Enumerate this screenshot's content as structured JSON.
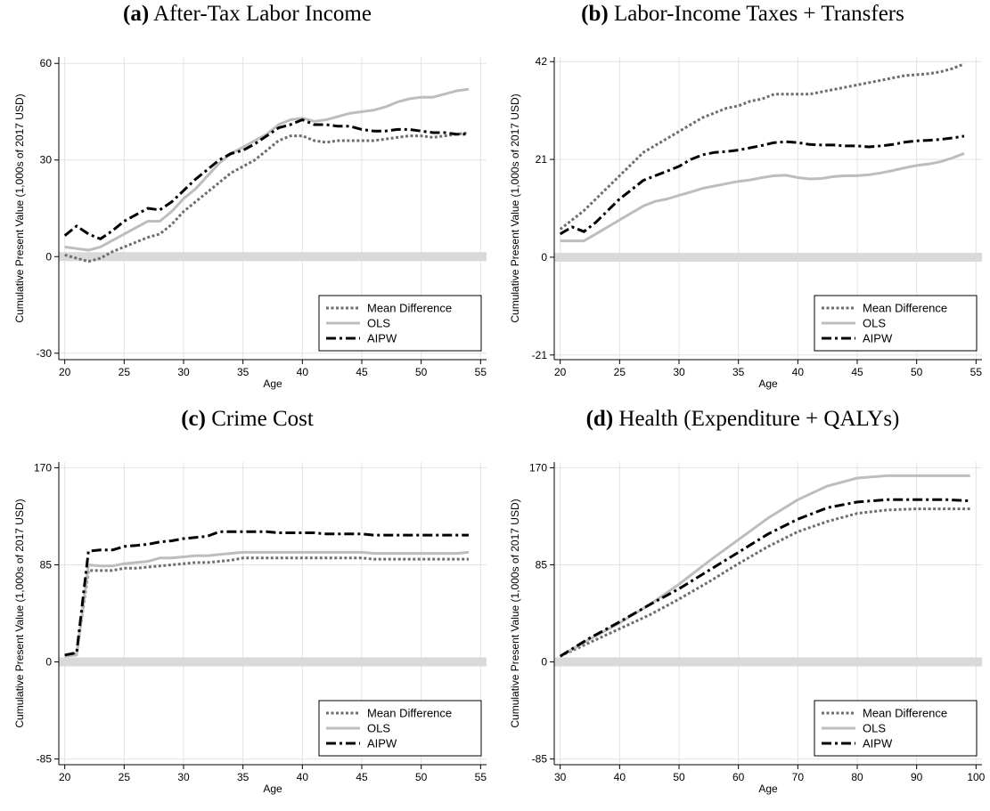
{
  "colors": {
    "mean_difference": "#6e6e6e",
    "ols": "#bdbdbd",
    "aipw": "#000000",
    "grid": "#e3e3e3",
    "zero_band": "#d9d9d9"
  },
  "chart_data": [
    {
      "type": "line",
      "label": "(a)",
      "title": "After-Tax Labor Income",
      "xlabel": "Age",
      "ylabel": "Cumulative Present Value (1,000s of 2017 USD)",
      "xlim": [
        19.5,
        55.5
      ],
      "ylim": [
        -32,
        62
      ],
      "xticks": [
        20,
        25,
        30,
        35,
        40,
        45,
        50,
        55
      ],
      "yticks": [
        -30,
        0,
        30,
        60
      ],
      "grid": true,
      "legend": "bottom-right",
      "series": [
        {
          "name": "Mean Difference",
          "style": "dotted",
          "x": [
            20,
            21,
            22,
            23,
            24,
            25,
            26,
            27,
            28,
            29,
            30,
            31,
            32,
            33,
            34,
            35,
            36,
            37,
            38,
            39,
            40,
            41,
            42,
            43,
            44,
            45,
            46,
            47,
            48,
            49,
            50,
            51,
            52,
            53,
            54
          ],
          "y": [
            0.5,
            -0.5,
            -1.5,
            -0.5,
            1.5,
            3,
            4.5,
            6,
            7,
            10,
            14,
            17,
            20,
            23,
            26,
            28,
            30,
            33,
            36,
            37.5,
            37.5,
            36,
            35.5,
            36,
            36,
            36,
            36,
            36.5,
            37,
            37.5,
            37.5,
            37,
            37.5,
            38,
            38.5
          ]
        },
        {
          "name": "OLS",
          "style": "solid",
          "x": [
            20,
            21,
            22,
            23,
            24,
            25,
            26,
            27,
            28,
            29,
            30,
            31,
            32,
            33,
            34,
            35,
            36,
            37,
            38,
            39,
            40,
            41,
            42,
            43,
            44,
            45,
            46,
            47,
            48,
            49,
            50,
            51,
            52,
            53,
            54
          ],
          "y": [
            3,
            2.5,
            2,
            3,
            5,
            7,
            9,
            11,
            11,
            14,
            18,
            21,
            25,
            29,
            32,
            34,
            36,
            38,
            41,
            42.5,
            43,
            42,
            42.5,
            43.5,
            44.5,
            45,
            45.5,
            46.5,
            48,
            49,
            49.5,
            49.5,
            50.5,
            51.5,
            52
          ]
        },
        {
          "name": "AIPW",
          "style": "dashdot",
          "x": [
            20,
            21,
            22,
            23,
            24,
            25,
            26,
            27,
            28,
            29,
            30,
            31,
            32,
            33,
            34,
            35,
            36,
            37,
            38,
            39,
            40,
            41,
            42,
            43,
            44,
            45,
            46,
            47,
            48,
            49,
            50,
            51,
            52,
            53,
            54
          ],
          "y": [
            6.5,
            9.5,
            7,
            5.5,
            8,
            11,
            13,
            15,
            14.5,
            17,
            20.5,
            24,
            27,
            30,
            32,
            33,
            35,
            37.5,
            40,
            41,
            42.5,
            41,
            41,
            40.5,
            40.5,
            39.5,
            39,
            39,
            39.5,
            39.5,
            39,
            38.5,
            38.5,
            38,
            38
          ]
        }
      ]
    },
    {
      "type": "line",
      "label": "(b)",
      "title": "Labor-Income Taxes + Transfers",
      "xlabel": "Age",
      "ylabel": "Cumulative Present Value (1,000s of 2017 USD)",
      "xlim": [
        19.5,
        55.5
      ],
      "ylim": [
        -22,
        43
      ],
      "xticks": [
        20,
        25,
        30,
        35,
        40,
        45,
        50,
        55
      ],
      "yticks": [
        -21,
        0,
        21,
        42
      ],
      "grid": true,
      "legend": "bottom-right",
      "series": [
        {
          "name": "Mean Difference",
          "style": "dotted",
          "x": [
            20,
            21,
            22,
            23,
            24,
            25,
            26,
            27,
            28,
            29,
            30,
            31,
            32,
            33,
            34,
            35,
            36,
            37,
            38,
            39,
            40,
            41,
            42,
            43,
            44,
            45,
            46,
            47,
            48,
            49,
            50,
            51,
            52,
            53,
            54
          ],
          "y": [
            6,
            8,
            10,
            12.5,
            15,
            17.5,
            20,
            22.5,
            24,
            25.5,
            27,
            28.5,
            30,
            31,
            32,
            32.5,
            33.5,
            34,
            35,
            35,
            35,
            35,
            35.5,
            36,
            36.5,
            37,
            37.5,
            38,
            38.5,
            39,
            39.2,
            39.4,
            39.8,
            40.5,
            41.5
          ]
        },
        {
          "name": "OLS",
          "style": "solid",
          "x": [
            20,
            21,
            22,
            23,
            24,
            25,
            26,
            27,
            28,
            29,
            30,
            31,
            32,
            33,
            34,
            35,
            36,
            37,
            38,
            39,
            40,
            41,
            42,
            43,
            44,
            45,
            46,
            47,
            48,
            49,
            50,
            51,
            52,
            53,
            54
          ],
          "y": [
            3.5,
            3.5,
            3.5,
            5,
            6.5,
            8,
            9.5,
            11,
            12,
            12.5,
            13.3,
            14,
            14.8,
            15.3,
            15.8,
            16.3,
            16.6,
            17.1,
            17.5,
            17.6,
            17.1,
            16.8,
            16.9,
            17.3,
            17.5,
            17.5,
            17.7,
            18.1,
            18.6,
            19.2,
            19.7,
            20,
            20.5,
            21.3,
            22.3
          ]
        },
        {
          "name": "AIPW",
          "style": "dashdot",
          "x": [
            20,
            21,
            22,
            23,
            24,
            25,
            26,
            27,
            28,
            29,
            30,
            31,
            32,
            33,
            34,
            35,
            36,
            37,
            38,
            39,
            40,
            41,
            42,
            43,
            44,
            45,
            46,
            47,
            48,
            49,
            50,
            51,
            52,
            53,
            54
          ],
          "y": [
            5,
            6.5,
            5.5,
            7.5,
            10,
            12.5,
            14.5,
            16.5,
            17.5,
            18.5,
            19.5,
            21,
            22,
            22.5,
            22.7,
            23,
            23.5,
            24,
            24.6,
            24.8,
            24.6,
            24.2,
            24.1,
            24.1,
            23.9,
            23.9,
            23.7,
            23.9,
            24.2,
            24.7,
            25,
            25.1,
            25.3,
            25.6,
            26
          ]
        }
      ]
    },
    {
      "type": "line",
      "label": "(c)",
      "title": "Crime Cost",
      "xlabel": "Age",
      "ylabel": "Cumulative Present Value (1,000s of 2017 USD)",
      "xlim": [
        19.5,
        55.5
      ],
      "ylim": [
        -90,
        175
      ],
      "xticks": [
        20,
        25,
        30,
        35,
        40,
        45,
        50,
        55
      ],
      "yticks": [
        -85,
        0,
        85,
        170
      ],
      "grid": true,
      "legend": "bottom-right",
      "series": [
        {
          "name": "Mean Difference",
          "style": "dotted",
          "x": [
            20,
            21,
            22,
            23,
            24,
            25,
            26,
            27,
            28,
            29,
            30,
            31,
            32,
            33,
            34,
            35,
            36,
            37,
            38,
            39,
            40,
            41,
            42,
            43,
            44,
            45,
            46,
            47,
            48,
            49,
            50,
            51,
            52,
            53,
            54
          ],
          "y": [
            5,
            7,
            80,
            80,
            80,
            82,
            82,
            83,
            84,
            85,
            86,
            87,
            87,
            88,
            89,
            91,
            91,
            91,
            91,
            91,
            91,
            91,
            91,
            91,
            91,
            91,
            90,
            90,
            90,
            90,
            90,
            90,
            90,
            90,
            90
          ]
        },
        {
          "name": "OLS",
          "style": "solid",
          "x": [
            20,
            21,
            22,
            23,
            24,
            25,
            26,
            27,
            28,
            29,
            30,
            31,
            32,
            33,
            34,
            35,
            36,
            37,
            38,
            39,
            40,
            41,
            42,
            43,
            44,
            45,
            46,
            47,
            48,
            49,
            50,
            51,
            52,
            53,
            54
          ],
          "y": [
            5,
            6,
            85,
            84,
            84,
            86,
            87,
            88,
            91,
            91,
            92,
            93,
            93,
            94,
            95,
            96,
            96,
            96,
            96,
            96,
            96,
            96,
            96,
            96,
            96,
            96,
            95,
            95,
            95,
            95,
            95,
            95,
            95,
            95,
            96
          ]
        },
        {
          "name": "AIPW",
          "style": "dashdot",
          "x": [
            20,
            21,
            22,
            23,
            24,
            25,
            26,
            27,
            28,
            29,
            30,
            31,
            32,
            33,
            34,
            35,
            36,
            37,
            38,
            39,
            40,
            41,
            42,
            43,
            44,
            45,
            46,
            47,
            48,
            49,
            50,
            51,
            52,
            53,
            54
          ],
          "y": [
            6,
            8,
            97,
            98,
            98,
            101,
            102,
            103,
            105,
            106,
            108,
            109,
            110,
            114,
            114,
            114,
            114,
            114,
            113,
            113,
            113,
            113,
            112,
            112,
            112,
            112,
            111,
            111,
            111,
            111,
            111,
            111,
            111,
            111,
            111
          ]
        }
      ]
    },
    {
      "type": "line",
      "label": "(d)",
      "title": "Health (Expenditure + QALYs)",
      "xlabel": "Age",
      "ylabel": "Cumulative Present Value (1,000s of 2017 USD)",
      "xlim": [
        29,
        101
      ],
      "ylim": [
        -90,
        175
      ],
      "xticks": [
        30,
        40,
        50,
        60,
        70,
        80,
        90,
        100
      ],
      "yticks": [
        -85,
        0,
        85,
        170
      ],
      "grid": true,
      "legend": "bottom-right",
      "series": [
        {
          "name": "Mean Difference",
          "style": "dotted",
          "x": [
            30,
            35,
            40,
            45,
            50,
            55,
            60,
            65,
            70,
            75,
            80,
            85,
            90,
            95,
            99
          ],
          "y": [
            5,
            17,
            29,
            41,
            55,
            70,
            86,
            101,
            114,
            123,
            130,
            133,
            134,
            134,
            134
          ]
        },
        {
          "name": "OLS",
          "style": "solid",
          "x": [
            30,
            35,
            40,
            45,
            50,
            55,
            60,
            65,
            70,
            75,
            80,
            85,
            90,
            95,
            99
          ],
          "y": [
            5,
            20,
            34,
            50,
            68,
            88,
            107,
            126,
            142,
            154,
            161,
            163,
            163,
            163,
            163
          ]
        },
        {
          "name": "AIPW",
          "style": "dashdot",
          "x": [
            30,
            35,
            40,
            45,
            50,
            55,
            60,
            65,
            70,
            75,
            80,
            85,
            90,
            95,
            99
          ],
          "y": [
            5,
            21,
            35,
            50,
            64,
            80,
            96,
            112,
            125,
            135,
            140,
            142,
            142,
            142,
            141
          ]
        }
      ]
    }
  ]
}
